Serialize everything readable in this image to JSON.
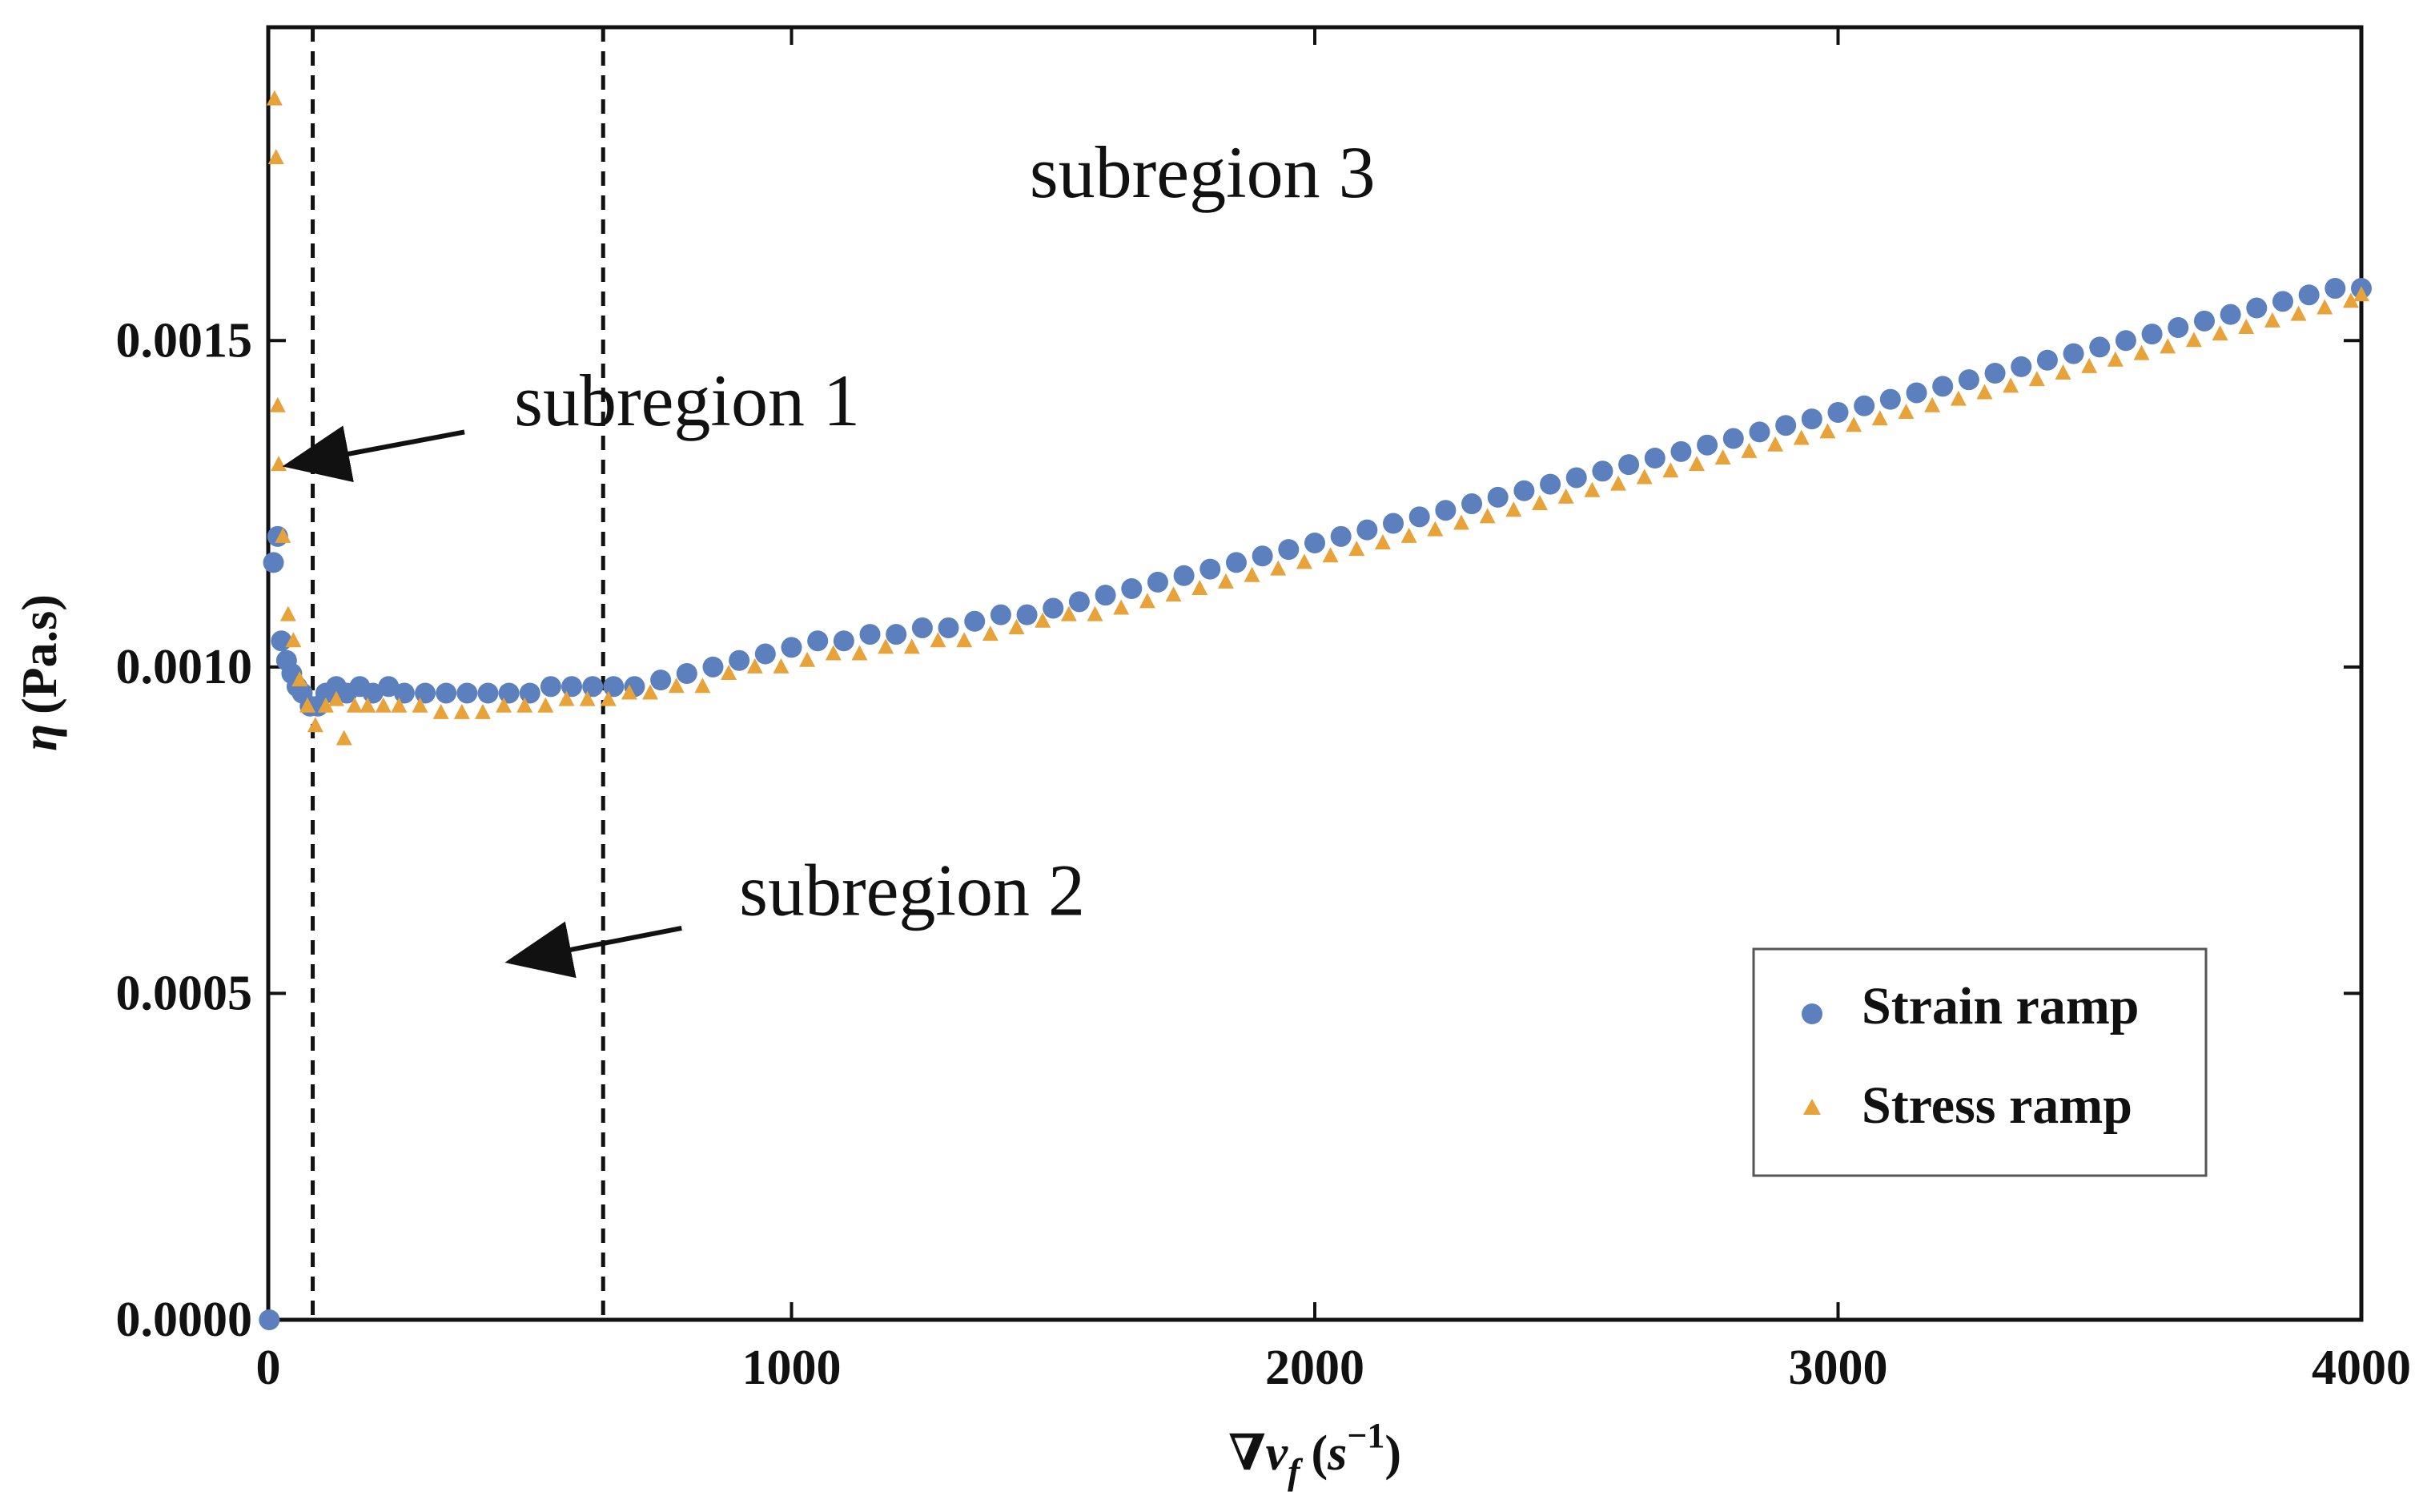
{
  "chart_data": {
    "type": "scatter",
    "title": "",
    "xlabel": "∇v_f (s⁻¹)",
    "xlabel_parts": {
      "nabla": "∇",
      "v": "v",
      "f": "f",
      "open": "(",
      "s": "s",
      "exp": "−1",
      "close": ")"
    },
    "ylabel": "η (Pa.s)",
    "ylabel_parts": {
      "eta": "η",
      "unit": "(Pa.s)"
    },
    "xlim": [
      0,
      4000
    ],
    "ylim": [
      0,
      0.00198
    ],
    "xticks": [
      0,
      1000,
      2000,
      3000,
      4000
    ],
    "xtick_labels": [
      "0",
      "1000",
      "2000",
      "3000",
      "4000"
    ],
    "yticks": [
      0,
      0.0005,
      0.001,
      0.0015
    ],
    "ytick_labels": [
      "0.0000",
      "0.0005",
      "0.0010",
      "0.0015"
    ],
    "grid": false,
    "legend_position": "bottom-right",
    "series": [
      {
        "name": "Strain ramp",
        "marker": "circle",
        "color": "#5b80bd",
        "points": [
          [
            2,
            0.0
          ],
          [
            10,
            0.00116
          ],
          [
            18,
            0.0012
          ],
          [
            25,
            0.00104
          ],
          [
            35,
            0.00101
          ],
          [
            45,
            0.00099
          ],
          [
            55,
            0.00097
          ],
          [
            65,
            0.00096
          ],
          [
            80,
            0.00094
          ],
          [
            95,
            0.00094
          ],
          [
            110,
            0.00096
          ],
          [
            130,
            0.00097
          ],
          [
            150,
            0.00096
          ],
          [
            175,
            0.00097
          ],
          [
            200,
            0.00096
          ],
          [
            230,
            0.00097
          ],
          [
            260,
            0.00096
          ],
          [
            300,
            0.00096
          ],
          [
            340,
            0.00096
          ],
          [
            380,
            0.00096
          ],
          [
            420,
            0.00096
          ],
          [
            460,
            0.00096
          ],
          [
            500,
            0.00096
          ],
          [
            540,
            0.00097
          ],
          [
            580,
            0.00097
          ],
          [
            620,
            0.00097
          ],
          [
            660,
            0.00097
          ],
          [
            700,
            0.00097
          ],
          [
            750,
            0.00098
          ],
          [
            800,
            0.00099
          ],
          [
            850,
            0.001
          ],
          [
            900,
            0.00101
          ],
          [
            950,
            0.00102
          ],
          [
            1000,
            0.00103
          ],
          [
            1050,
            0.00104
          ],
          [
            1100,
            0.00104
          ],
          [
            1150,
            0.00105
          ],
          [
            1200,
            0.00105
          ],
          [
            1250,
            0.00106
          ],
          [
            1300,
            0.00106
          ],
          [
            1350,
            0.00107
          ],
          [
            1400,
            0.00108
          ],
          [
            1450,
            0.00108
          ],
          [
            1500,
            0.00109
          ],
          [
            1550,
            0.0011
          ],
          [
            1600,
            0.00111
          ],
          [
            1650,
            0.00112
          ],
          [
            1700,
            0.00113
          ],
          [
            1750,
            0.00114
          ],
          [
            1800,
            0.00115
          ],
          [
            1850,
            0.00116
          ],
          [
            1900,
            0.00117
          ],
          [
            1950,
            0.00118
          ],
          [
            2000,
            0.00119
          ],
          [
            2050,
            0.0012
          ],
          [
            2100,
            0.00121
          ],
          [
            2150,
            0.00122
          ],
          [
            2200,
            0.00123
          ],
          [
            2250,
            0.00124
          ],
          [
            2300,
            0.00125
          ],
          [
            2350,
            0.00126
          ],
          [
            2400,
            0.00127
          ],
          [
            2450,
            0.00128
          ],
          [
            2500,
            0.00129
          ],
          [
            2550,
            0.0013
          ],
          [
            2600,
            0.00131
          ],
          [
            2650,
            0.00132
          ],
          [
            2700,
            0.00133
          ],
          [
            2750,
            0.00134
          ],
          [
            2800,
            0.00135
          ],
          [
            2850,
            0.00136
          ],
          [
            2900,
            0.00137
          ],
          [
            2950,
            0.00138
          ],
          [
            3000,
            0.00139
          ],
          [
            3050,
            0.0014
          ],
          [
            3100,
            0.00141
          ],
          [
            3150,
            0.00142
          ],
          [
            3200,
            0.00143
          ],
          [
            3250,
            0.00144
          ],
          [
            3300,
            0.00145
          ],
          [
            3350,
            0.00146
          ],
          [
            3400,
            0.00147
          ],
          [
            3450,
            0.00148
          ],
          [
            3500,
            0.00149
          ],
          [
            3550,
            0.0015
          ],
          [
            3600,
            0.00151
          ],
          [
            3650,
            0.00152
          ],
          [
            3700,
            0.00153
          ],
          [
            3750,
            0.00154
          ],
          [
            3800,
            0.00155
          ],
          [
            3850,
            0.00156
          ],
          [
            3900,
            0.00157
          ],
          [
            3950,
            0.00158
          ],
          [
            4000,
            0.00158
          ]
        ]
      },
      {
        "name": "Stress ramp",
        "marker": "triangle",
        "color": "#e8a23a",
        "points": [
          [
            12,
            0.00187
          ],
          [
            15,
            0.00178
          ],
          [
            18,
            0.0014
          ],
          [
            20,
            0.00131
          ],
          [
            28,
            0.0012
          ],
          [
            38,
            0.00108
          ],
          [
            48,
            0.00104
          ],
          [
            60,
            0.00098
          ],
          [
            75,
            0.00094
          ],
          [
            90,
            0.00091
          ],
          [
            110,
            0.00094
          ],
          [
            130,
            0.00095
          ],
          [
            145,
            0.00089
          ],
          [
            165,
            0.00094
          ],
          [
            190,
            0.00094
          ],
          [
            220,
            0.00094
          ],
          [
            250,
            0.00094
          ],
          [
            290,
            0.00094
          ],
          [
            330,
            0.00093
          ],
          [
            370,
            0.00093
          ],
          [
            410,
            0.00093
          ],
          [
            450,
            0.00094
          ],
          [
            490,
            0.00094
          ],
          [
            530,
            0.00094
          ],
          [
            570,
            0.00095
          ],
          [
            610,
            0.00095
          ],
          [
            650,
            0.00095
          ],
          [
            690,
            0.00096
          ],
          [
            730,
            0.00096
          ],
          [
            780,
            0.00097
          ],
          [
            830,
            0.00097
          ],
          [
            880,
            0.00099
          ],
          [
            930,
            0.001
          ],
          [
            980,
            0.001
          ],
          [
            1030,
            0.00101
          ],
          [
            1080,
            0.00102
          ],
          [
            1130,
            0.00102
          ],
          [
            1180,
            0.00103
          ],
          [
            1230,
            0.00103
          ],
          [
            1280,
            0.00104
          ],
          [
            1330,
            0.00104
          ],
          [
            1380,
            0.00105
          ],
          [
            1430,
            0.00106
          ],
          [
            1480,
            0.00107
          ],
          [
            1530,
            0.00108
          ],
          [
            1580,
            0.00108
          ],
          [
            1630,
            0.00109
          ],
          [
            1680,
            0.0011
          ],
          [
            1730,
            0.00111
          ],
          [
            1780,
            0.00112
          ],
          [
            1830,
            0.00113
          ],
          [
            1880,
            0.00114
          ],
          [
            1930,
            0.00115
          ],
          [
            1980,
            0.00116
          ],
          [
            2030,
            0.00117
          ],
          [
            2080,
            0.00118
          ],
          [
            2130,
            0.00119
          ],
          [
            2180,
            0.0012
          ],
          [
            2230,
            0.00121
          ],
          [
            2280,
            0.00122
          ],
          [
            2330,
            0.00123
          ],
          [
            2380,
            0.00124
          ],
          [
            2430,
            0.00125
          ],
          [
            2480,
            0.00126
          ],
          [
            2530,
            0.00127
          ],
          [
            2580,
            0.00128
          ],
          [
            2630,
            0.00129
          ],
          [
            2680,
            0.0013
          ],
          [
            2730,
            0.00131
          ],
          [
            2780,
            0.00132
          ],
          [
            2830,
            0.00133
          ],
          [
            2880,
            0.00134
          ],
          [
            2930,
            0.00135
          ],
          [
            2980,
            0.00136
          ],
          [
            3030,
            0.00137
          ],
          [
            3080,
            0.00138
          ],
          [
            3130,
            0.00139
          ],
          [
            3180,
            0.0014
          ],
          [
            3230,
            0.00141
          ],
          [
            3280,
            0.00142
          ],
          [
            3330,
            0.00143
          ],
          [
            3380,
            0.00144
          ],
          [
            3430,
            0.00145
          ],
          [
            3480,
            0.00146
          ],
          [
            3530,
            0.00147
          ],
          [
            3580,
            0.00148
          ],
          [
            3630,
            0.00149
          ],
          [
            3680,
            0.0015
          ],
          [
            3730,
            0.00151
          ],
          [
            3780,
            0.00152
          ],
          [
            3830,
            0.00153
          ],
          [
            3880,
            0.00154
          ],
          [
            3930,
            0.00155
          ],
          [
            3980,
            0.00156
          ],
          [
            4000,
            0.00157
          ]
        ]
      }
    ],
    "vlines": [
      {
        "x": 85,
        "style": "dashed"
      },
      {
        "x": 640,
        "style": "dashed"
      }
    ],
    "annotations": [
      {
        "text": "subregion 1",
        "x": 470,
        "y": 0.00137,
        "arrow_from": [
          375,
          0.00136
        ],
        "arrow_to": [
          45,
          0.00131
        ]
      },
      {
        "text": "subregion 2",
        "x": 900,
        "y": 0.00062,
        "arrow_from": [
          790,
          0.0006
        ],
        "arrow_to": [
          470,
          0.00055
        ]
      },
      {
        "text": "subregion 3",
        "x": 1455,
        "y": 0.00172
      }
    ]
  }
}
